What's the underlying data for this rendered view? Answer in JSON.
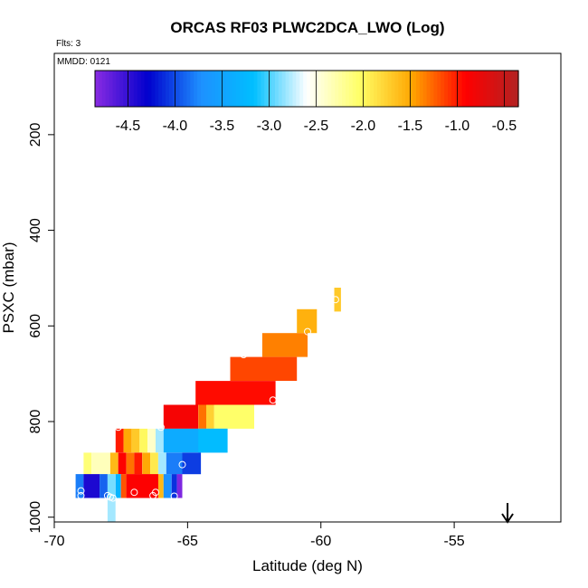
{
  "chart_data": {
    "type": "heatmap",
    "title": "ORCAS RF03 PLWC2DCA_LWO (Log)",
    "flights_note": "Flts: 3",
    "date_note": "MMDD: 0121",
    "xlabel": "Latitude (deg N)",
    "ylabel": "PSXC (mbar)",
    "xlim": [
      -70,
      -51
    ],
    "ylim": [
      1010,
      30
    ],
    "y_reversed": true,
    "x_ticks": [
      -70,
      -65,
      -60,
      -55
    ],
    "y_ticks": [
      200,
      400,
      600,
      800,
      1000
    ],
    "colorbar": {
      "range": [
        -4.85,
        -0.35
      ],
      "ticks": [
        -4.5,
        -4.0,
        -3.5,
        -3.0,
        -2.5,
        -2.0,
        -1.5,
        -1.0,
        -0.5
      ],
      "tick_labels": [
        "-4.5",
        "-4.0",
        "-3.5",
        "-3.0",
        "-2.5",
        "-2.0",
        "-1.5",
        "-1.0",
        "-0.5"
      ],
      "colors": [
        "#8a2be2",
        "#0000cd",
        "#1e90ff",
        "#00bfff",
        "#ffffff",
        "#ffff66",
        "#ffa500",
        "#ff0000",
        "#b22222"
      ]
    },
    "cells": [
      {
        "x0": -59.5,
        "x1": -59.25,
        "y0": 520,
        "y1": 570,
        "v": -1.7
      },
      {
        "x0": -60.9,
        "x1": -60.15,
        "y0": 565,
        "y1": 615,
        "v": -1.55
      },
      {
        "x0": -62.2,
        "x1": -60.5,
        "y0": 615,
        "y1": 665,
        "v": -1.35
      },
      {
        "x0": -63.4,
        "x1": -60.9,
        "y0": 665,
        "y1": 715,
        "v": -1.15
      },
      {
        "x0": -64.7,
        "x1": -61.7,
        "y0": 715,
        "y1": 765,
        "v": -0.95
      },
      {
        "x0": -65.9,
        "x1": -64.6,
        "y0": 765,
        "y1": 815,
        "v": -0.85
      },
      {
        "x0": -64.6,
        "x1": -64.3,
        "y0": 765,
        "y1": 815,
        "v": -1.3
      },
      {
        "x0": -64.3,
        "x1": -64.0,
        "y0": 765,
        "y1": 815,
        "v": -1.75
      },
      {
        "x0": -64.0,
        "x1": -62.5,
        "y0": 765,
        "y1": 815,
        "v": -2.05
      },
      {
        "x0": -67.7,
        "x1": -67.4,
        "y0": 815,
        "y1": 865,
        "v": -1.0
      },
      {
        "x0": -67.4,
        "x1": -67.1,
        "y0": 815,
        "y1": 865,
        "v": -1.5
      },
      {
        "x0": -67.1,
        "x1": -66.8,
        "y0": 815,
        "y1": 865,
        "v": -1.7
      },
      {
        "x0": -66.8,
        "x1": -66.5,
        "y0": 815,
        "y1": 865,
        "v": -2.0
      },
      {
        "x0": -66.5,
        "x1": -66.2,
        "y0": 815,
        "y1": 865,
        "v": -2.4
      },
      {
        "x0": -66.2,
        "x1": -65.9,
        "y0": 815,
        "y1": 865,
        "v": -2.8
      },
      {
        "x0": -65.9,
        "x1": -63.5,
        "y0": 815,
        "y1": 865,
        "v": -3.4
      },
      {
        "x0": -64.6,
        "x1": -63.5,
        "y0": 815,
        "y1": 865,
        "v": -3.2
      },
      {
        "x0": -68.9,
        "x1": -68.6,
        "y0": 865,
        "y1": 910,
        "v": -2.1
      },
      {
        "x0": -68.6,
        "x1": -67.9,
        "y0": 865,
        "y1": 910,
        "v": -2.35
      },
      {
        "x0": -67.9,
        "x1": -67.6,
        "y0": 865,
        "y1": 910,
        "v": -1.6
      },
      {
        "x0": -67.6,
        "x1": -67.3,
        "y0": 865,
        "y1": 910,
        "v": -0.9
      },
      {
        "x0": -67.3,
        "x1": -67.0,
        "y0": 865,
        "y1": 910,
        "v": -1.3
      },
      {
        "x0": -67.0,
        "x1": -66.7,
        "y0": 865,
        "y1": 910,
        "v": -1.0
      },
      {
        "x0": -66.7,
        "x1": -66.4,
        "y0": 865,
        "y1": 910,
        "v": -1.5
      },
      {
        "x0": -66.4,
        "x1": -66.1,
        "y0": 865,
        "y1": 910,
        "v": -1.9
      },
      {
        "x0": -66.1,
        "x1": -65.8,
        "y0": 865,
        "y1": 910,
        "v": -2.8
      },
      {
        "x0": -65.8,
        "x1": -65.2,
        "y0": 865,
        "y1": 910,
        "v": -3.8
      },
      {
        "x0": -65.2,
        "x1": -64.5,
        "y0": 865,
        "y1": 910,
        "v": -4.05
      },
      {
        "x0": -69.2,
        "x1": -68.9,
        "y0": 910,
        "y1": 960,
        "v": -3.8
      },
      {
        "x0": -68.9,
        "x1": -68.3,
        "y0": 910,
        "y1": 960,
        "v": -4.4
      },
      {
        "x0": -68.3,
        "x1": -68.0,
        "y0": 910,
        "y1": 960,
        "v": -3.9
      },
      {
        "x0": -68.0,
        "x1": -67.7,
        "y0": 910,
        "y1": 960,
        "v": -2.9
      },
      {
        "x0": -67.7,
        "x1": -67.5,
        "y0": 910,
        "y1": 960,
        "v": -3.3
      },
      {
        "x0": -67.5,
        "x1": -67.3,
        "y0": 910,
        "y1": 960,
        "v": -1.2
      },
      {
        "x0": -67.3,
        "x1": -66.1,
        "y0": 910,
        "y1": 960,
        "v": -0.9
      },
      {
        "x0": -66.1,
        "x1": -65.9,
        "y0": 910,
        "y1": 960,
        "v": -1.6
      },
      {
        "x0": -65.9,
        "x1": -65.6,
        "y0": 910,
        "y1": 960,
        "v": -3.7
      },
      {
        "x0": -65.6,
        "x1": -65.4,
        "y0": 910,
        "y1": 960,
        "v": -4.1
      },
      {
        "x0": -65.4,
        "x1": -65.2,
        "y0": 910,
        "y1": 960,
        "v": -4.8
      },
      {
        "x0": -68.0,
        "x1": -67.7,
        "y0": 960,
        "y1": 1010,
        "v": -2.8
      }
    ],
    "markers": [
      {
        "x": -59.45,
        "y": 545
      },
      {
        "x": -60.5,
        "y": 612
      },
      {
        "x": -62.9,
        "y": 660
      },
      {
        "x": -61.8,
        "y": 755
      },
      {
        "x": -66.0,
        "y": 812
      },
      {
        "x": -67.6,
        "y": 812
      },
      {
        "x": -65.2,
        "y": 890
      },
      {
        "x": -69.0,
        "y": 945
      },
      {
        "x": -69.0,
        "y": 955
      },
      {
        "x": -68.0,
        "y": 955
      },
      {
        "x": -67.9,
        "y": 958
      },
      {
        "x": -67.8,
        "y": 960
      },
      {
        "x": -67.0,
        "y": 948
      },
      {
        "x": -66.3,
        "y": 955
      },
      {
        "x": -66.2,
        "y": 948
      },
      {
        "x": -65.5,
        "y": 956
      }
    ],
    "arrow": {
      "x": -53.0
    }
  }
}
